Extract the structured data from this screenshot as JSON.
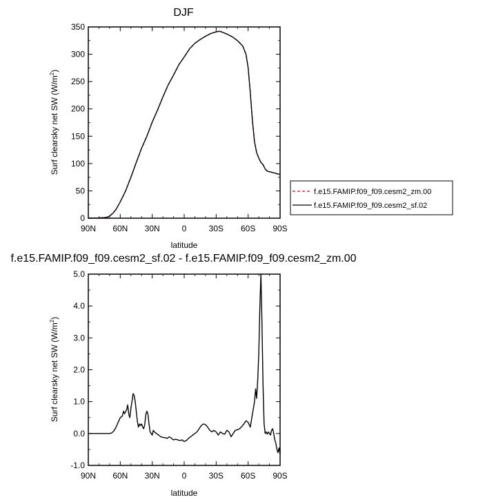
{
  "chart_data": [
    {
      "type": "line",
      "title": "DJF",
      "xlabel": "latitude",
      "ylabel": "Surf clearsky net SW (W/m",
      "ylabel_sup": "2",
      "ylabel_end": ")",
      "xlim": [
        90,
        -90
      ],
      "ylim": [
        0,
        350
      ],
      "x_ticks": [
        90,
        60,
        30,
        0,
        -30,
        -60,
        -90
      ],
      "x_tick_labels": [
        "90N",
        "60N",
        "30N",
        "0",
        "30S",
        "60S",
        "90S"
      ],
      "y_ticks": [
        0,
        50,
        100,
        150,
        200,
        250,
        300,
        350
      ],
      "y_tick_labels": [
        "0",
        "50",
        "100",
        "150",
        "200",
        "250",
        "300",
        "350"
      ],
      "legend": {
        "position": "right",
        "entries": [
          {
            "label": "f.e15.FAMIP.f09_f09.cesm2_zm.00",
            "color": "#cc0000",
            "dash": "dashed"
          },
          {
            "label": "f.e15.FAMIP.f09_f09.cesm2_sf.02",
            "color": "#000000",
            "dash": "solid"
          }
        ]
      },
      "series": [
        {
          "name": "f.e15.FAMIP.f09_f09.cesm2_zm.00",
          "color": "#cc0000",
          "dash": "dashed",
          "x": [
            90,
            80,
            75,
            72,
            70,
            67,
            64,
            60,
            55,
            50,
            45,
            40,
            35,
            30,
            25,
            20,
            15,
            10,
            5,
            0,
            -5,
            -10,
            -15,
            -20,
            -25,
            -30,
            -33,
            -35,
            -40,
            -45,
            -50,
            -55,
            -58,
            -60,
            -62,
            -64,
            -66,
            -68,
            -70,
            -72,
            -74,
            -76,
            -78,
            -80,
            -82,
            -84,
            -86,
            -88,
            -90
          ],
          "y": [
            0,
            0.5,
            1,
            2,
            4,
            9,
            16,
            30,
            50,
            75,
            102,
            128,
            150,
            176,
            198,
            222,
            244,
            262,
            281,
            295,
            310,
            320,
            327,
            333,
            338,
            341,
            342,
            341,
            337,
            332,
            325,
            315,
            300,
            275,
            230,
            180,
            140,
            120,
            110,
            102,
            98,
            90,
            86,
            85,
            84,
            83,
            82,
            81,
            80
          ]
        },
        {
          "name": "f.e15.FAMIP.f09_f09.cesm2_sf.02",
          "color": "#000000",
          "dash": "solid",
          "x": [
            90,
            80,
            75,
            72,
            70,
            67,
            64,
            60,
            55,
            50,
            45,
            40,
            35,
            30,
            25,
            20,
            15,
            10,
            5,
            0,
            -5,
            -10,
            -15,
            -20,
            -25,
            -30,
            -33,
            -35,
            -40,
            -45,
            -50,
            -55,
            -58,
            -60,
            -62,
            -64,
            -66,
            -68,
            -70,
            -72,
            -74,
            -76,
            -78,
            -80,
            -82,
            -84,
            -86,
            -88,
            -90
          ],
          "y": [
            0,
            0.5,
            1,
            2,
            4,
            9,
            16,
            30,
            50,
            75,
            102,
            128,
            150,
            176,
            198,
            222,
            244,
            262,
            281,
            295,
            310,
            320,
            327,
            333,
            338,
            341,
            342,
            341,
            337,
            332,
            325,
            315,
            300,
            275,
            230,
            180,
            140,
            120,
            110,
            102,
            98,
            90,
            86,
            85,
            84,
            83,
            82,
            81,
            80
          ]
        }
      ]
    },
    {
      "type": "line",
      "title": "f.e15.FAMIP.f09_f09.cesm2_sf.02 - f.e15.FAMIP.f09_f09.cesm2_zm.00",
      "xlabel": "latitude",
      "ylabel": "Surf clearsky net SW (W/m",
      "ylabel_sup": "2",
      "ylabel_end": ")",
      "xlim": [
        90,
        -90
      ],
      "ylim": [
        -1,
        5
      ],
      "x_ticks": [
        90,
        60,
        30,
        0,
        -30,
        -60,
        -90
      ],
      "x_tick_labels": [
        "90N",
        "60N",
        "30N",
        "0",
        "30S",
        "60S",
        "90S"
      ],
      "y_ticks": [
        -1,
        0,
        1,
        2,
        3,
        4,
        5
      ],
      "y_tick_labels": [
        "-1.0",
        "0.0",
        "1.0",
        "2.0",
        "3.0",
        "4.0",
        "5.0"
      ],
      "series": [
        {
          "color": "#000000",
          "dash": "solid",
          "x": [
            90,
            80,
            70,
            68,
            66,
            64,
            62,
            60,
            58,
            57,
            56,
            54,
            53,
            52,
            51,
            50,
            49,
            48,
            47,
            46,
            45,
            44,
            43,
            42,
            41,
            40,
            39,
            38,
            37,
            36,
            35,
            34,
            33,
            32,
            31,
            30,
            29,
            28,
            26,
            24,
            22,
            20,
            18,
            16,
            14,
            12,
            10,
            8,
            6,
            4,
            2,
            0,
            -2,
            -4,
            -6,
            -8,
            -10,
            -12,
            -14,
            -16,
            -18,
            -20,
            -22,
            -24,
            -26,
            -28,
            -30,
            -32,
            -34,
            -36,
            -38,
            -40,
            -42,
            -44,
            -46,
            -48,
            -50,
            -52,
            -54,
            -56,
            -58,
            -60,
            -62,
            -63,
            -64,
            -65,
            -66,
            -67,
            -68,
            -69,
            -70,
            -71,
            -72,
            -73,
            -74,
            -75,
            -76,
            -77,
            -78,
            -79,
            -80,
            -81,
            -82,
            -83,
            -84,
            -85,
            -86,
            -87,
            -88,
            -89,
            -90
          ],
          "y": [
            0,
            0,
            0,
            0.02,
            0.08,
            0.2,
            0.35,
            0.5,
            0.55,
            0.7,
            0.62,
            0.75,
            0.9,
            0.6,
            0.5,
            0.8,
            1.0,
            1.25,
            1.2,
            1.0,
            0.7,
            0.4,
            0.2,
            0.3,
            0.25,
            0.3,
            0.2,
            0.15,
            0.3,
            0.6,
            0.7,
            0.6,
            0.3,
            0.05,
            0.0,
            -0.05,
            0.1,
            0.05,
            0.0,
            -0.05,
            -0.1,
            -0.12,
            -0.13,
            -0.15,
            -0.1,
            -0.15,
            -0.2,
            -0.18,
            -0.2,
            -0.22,
            -0.2,
            -0.25,
            -0.22,
            -0.15,
            -0.1,
            -0.05,
            0.0,
            0.05,
            0.15,
            0.25,
            0.3,
            0.28,
            0.2,
            0.1,
            0.05,
            0.1,
            0.05,
            -0.05,
            0.05,
            0.0,
            -0.02,
            0.1,
            0.05,
            -0.1,
            0.0,
            0.1,
            0.12,
            0.15,
            0.22,
            0.3,
            0.4,
            0.35,
            0.2,
            0.4,
            0.6,
            0.8,
            1.0,
            1.4,
            1.1,
            1.7,
            2.5,
            4.0,
            5.0,
            3.5,
            1.5,
            0.3,
            0.0,
            0.05,
            -0.02,
            0.05,
            0.0,
            -0.05,
            0.1,
            0.15,
            0.0,
            -0.2,
            -0.3,
            -0.5,
            -0.6,
            -0.45,
            -0.65
          ]
        }
      ]
    }
  ]
}
